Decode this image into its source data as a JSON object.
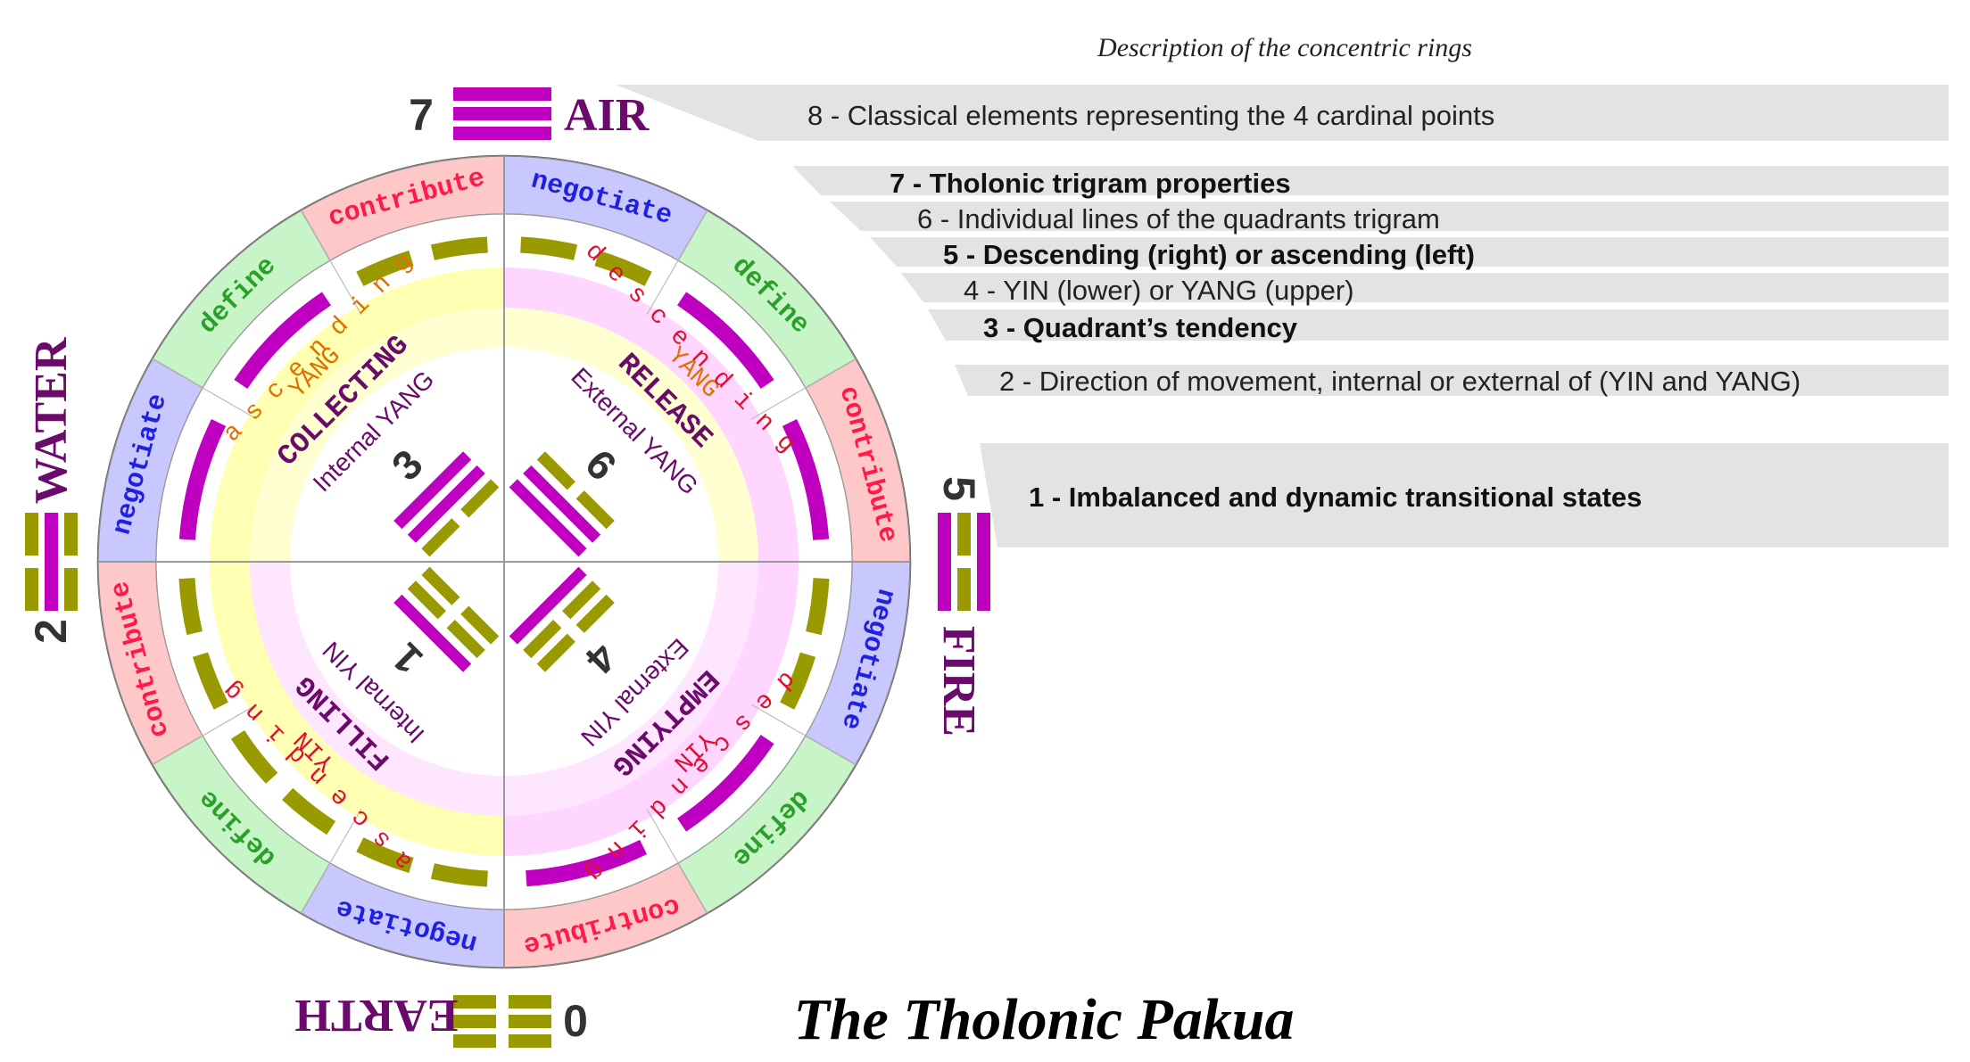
{
  "title": "The Tholonic Pakua",
  "legend": {
    "heading": "Description of the concentric rings",
    "items": [
      "8 - Classical elements representing the 4 cardinal points",
      "7 - Tholonic trigram properties",
      "6 - Individual lines of the quadrants trigram",
      "5 - Descending (right) or ascending (left)",
      "4 - YIN (lower) or YANG (upper)",
      "3 - Quadrant’s tendency",
      "2 - Direction of movement, internal or external of (YIN and YANG)",
      "1 - Imbalanced and dynamic transitional states"
    ]
  },
  "elements": {
    "air": {
      "number": "7",
      "name": "AIR",
      "lines": [
        1,
        1,
        1
      ]
    },
    "fire": {
      "number": "5",
      "name": "FIRE",
      "lines": [
        1,
        0,
        1
      ]
    },
    "earth": {
      "number": "0",
      "name": "EARTH",
      "lines": [
        0,
        0,
        0
      ]
    },
    "water": {
      "number": "2",
      "name": "WATER",
      "lines": [
        0,
        1,
        0
      ]
    }
  },
  "quadrants": {
    "tl": {
      "number": "3",
      "tendency": "COLLECTING",
      "movement": "Internal YANG",
      "yinyang": "YANG",
      "direction": "ascending",
      "lines": [
        1,
        1,
        0
      ]
    },
    "tr": {
      "number": "6",
      "tendency": "RELEASE",
      "movement": "External YANG",
      "yinyang": "YANG",
      "direction": "descending",
      "lines": [
        0,
        1,
        1
      ]
    },
    "bl": {
      "number": "1",
      "tendency": "FILLING",
      "movement": "Internal YIN",
      "yinyang": "YIN",
      "direction": "ascending",
      "lines": [
        1,
        0,
        0
      ]
    },
    "br": {
      "number": "4",
      "tendency": "EMPTYING",
      "movement": "External YIN",
      "yinyang": "YIN",
      "direction": "descending",
      "lines": [
        0,
        0,
        1
      ]
    }
  },
  "properties": [
    "contribute",
    "negotiate",
    "define"
  ],
  "colors": {
    "yang": "#c000c0",
    "yin": "#999900",
    "contribute_bg": "#ffc8c8",
    "contribute_text": "#ff1a4a",
    "negotiate_bg": "#c8c8ff",
    "negotiate_text": "#2020e0",
    "define_bg": "#c8f5c8",
    "define_text": "#2aa02a",
    "purple": "#6a0a6a",
    "red": "#e01030",
    "orange": "#e07000",
    "band_yellow": "#ffffb3",
    "band_pink": "#ffd6ff",
    "legend_bar": "#e3e3e3"
  }
}
